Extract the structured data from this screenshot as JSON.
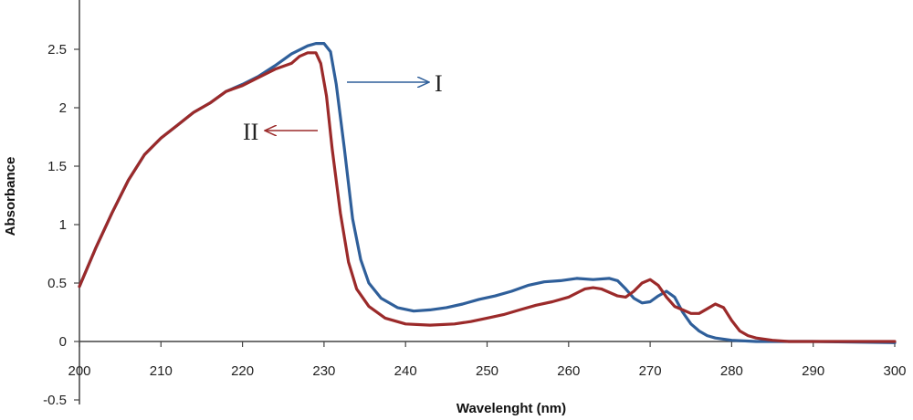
{
  "chart_data": {
    "type": "line",
    "title": "",
    "xlabel": "Wavelenght (nm)",
    "ylabel": "Absorbance",
    "xlim": [
      200,
      300
    ],
    "ylim": [
      -0.5,
      3.0
    ],
    "x_ticks": [
      200,
      210,
      220,
      230,
      240,
      250,
      260,
      270,
      280,
      290,
      300
    ],
    "y_ticks": [
      -0.5,
      0,
      0.5,
      1,
      1.5,
      2,
      2.5
    ],
    "y_tick_labels": [
      "-0.5",
      "0",
      "0.5",
      "1",
      "1.5",
      "2",
      "2.5"
    ],
    "grid": false,
    "colors": {
      "I": "#2f5f9a",
      "II": "#9b2a2a"
    },
    "series": [
      {
        "label": "I",
        "points": [
          [
            200,
            0.47
          ],
          [
            202,
            0.8
          ],
          [
            204,
            1.1
          ],
          [
            206,
            1.38
          ],
          [
            208,
            1.6
          ],
          [
            210,
            1.74
          ],
          [
            212,
            1.85
          ],
          [
            214,
            1.96
          ],
          [
            216,
            2.04
          ],
          [
            218,
            2.14
          ],
          [
            220,
            2.2
          ],
          [
            222,
            2.27
          ],
          [
            224,
            2.36
          ],
          [
            226,
            2.46
          ],
          [
            228,
            2.53
          ],
          [
            229,
            2.55
          ],
          [
            230,
            2.55
          ],
          [
            230.8,
            2.48
          ],
          [
            231.5,
            2.2
          ],
          [
            232.5,
            1.65
          ],
          [
            233.5,
            1.05
          ],
          [
            234.5,
            0.7
          ],
          [
            235.5,
            0.5
          ],
          [
            237,
            0.37
          ],
          [
            239,
            0.29
          ],
          [
            241,
            0.26
          ],
          [
            243,
            0.27
          ],
          [
            245,
            0.29
          ],
          [
            247,
            0.32
          ],
          [
            249,
            0.36
          ],
          [
            251,
            0.39
          ],
          [
            253,
            0.43
          ],
          [
            255,
            0.48
          ],
          [
            257,
            0.51
          ],
          [
            259,
            0.52
          ],
          [
            261,
            0.54
          ],
          [
            263,
            0.53
          ],
          [
            265,
            0.54
          ],
          [
            266,
            0.52
          ],
          [
            267,
            0.45
          ],
          [
            268,
            0.37
          ],
          [
            269,
            0.33
          ],
          [
            270,
            0.34
          ],
          [
            271,
            0.39
          ],
          [
            272,
            0.43
          ],
          [
            273,
            0.38
          ],
          [
            274,
            0.25
          ],
          [
            275,
            0.15
          ],
          [
            276,
            0.09
          ],
          [
            277,
            0.05
          ],
          [
            278,
            0.03
          ],
          [
            280,
            0.01
          ],
          [
            283,
            0.0
          ],
          [
            290,
            0.0
          ],
          [
            300,
            -0.01
          ]
        ]
      },
      {
        "label": "II",
        "points": [
          [
            200,
            0.47
          ],
          [
            202,
            0.8
          ],
          [
            204,
            1.1
          ],
          [
            206,
            1.38
          ],
          [
            208,
            1.6
          ],
          [
            210,
            1.74
          ],
          [
            212,
            1.85
          ],
          [
            214,
            1.96
          ],
          [
            216,
            2.04
          ],
          [
            218,
            2.14
          ],
          [
            220,
            2.19
          ],
          [
            222,
            2.26
          ],
          [
            224,
            2.33
          ],
          [
            226,
            2.38
          ],
          [
            227,
            2.44
          ],
          [
            228,
            2.47
          ],
          [
            229,
            2.47
          ],
          [
            229.6,
            2.38
          ],
          [
            230.3,
            2.1
          ],
          [
            231,
            1.65
          ],
          [
            232,
            1.1
          ],
          [
            233,
            0.68
          ],
          [
            234,
            0.45
          ],
          [
            235.5,
            0.3
          ],
          [
            237.5,
            0.2
          ],
          [
            240,
            0.15
          ],
          [
            243,
            0.14
          ],
          [
            246,
            0.15
          ],
          [
            248,
            0.17
          ],
          [
            250,
            0.2
          ],
          [
            252,
            0.23
          ],
          [
            254,
            0.27
          ],
          [
            256,
            0.31
          ],
          [
            258,
            0.34
          ],
          [
            260,
            0.38
          ],
          [
            262,
            0.45
          ],
          [
            263,
            0.46
          ],
          [
            264,
            0.45
          ],
          [
            266,
            0.39
          ],
          [
            267,
            0.38
          ],
          [
            268,
            0.43
          ],
          [
            269,
            0.5
          ],
          [
            270,
            0.53
          ],
          [
            271,
            0.48
          ],
          [
            272,
            0.38
          ],
          [
            273,
            0.3
          ],
          [
            274,
            0.27
          ],
          [
            275,
            0.24
          ],
          [
            276,
            0.24
          ],
          [
            277,
            0.28
          ],
          [
            278,
            0.32
          ],
          [
            279,
            0.29
          ],
          [
            280,
            0.18
          ],
          [
            281,
            0.09
          ],
          [
            282,
            0.05
          ],
          [
            283,
            0.03
          ],
          [
            285,
            0.01
          ],
          [
            287,
            0.0
          ],
          [
            300,
            0.0
          ]
        ]
      }
    ],
    "annotations": [
      {
        "text": "I",
        "series": "I",
        "arrow": "right"
      },
      {
        "text": "II",
        "series": "II",
        "arrow": "left"
      }
    ]
  }
}
